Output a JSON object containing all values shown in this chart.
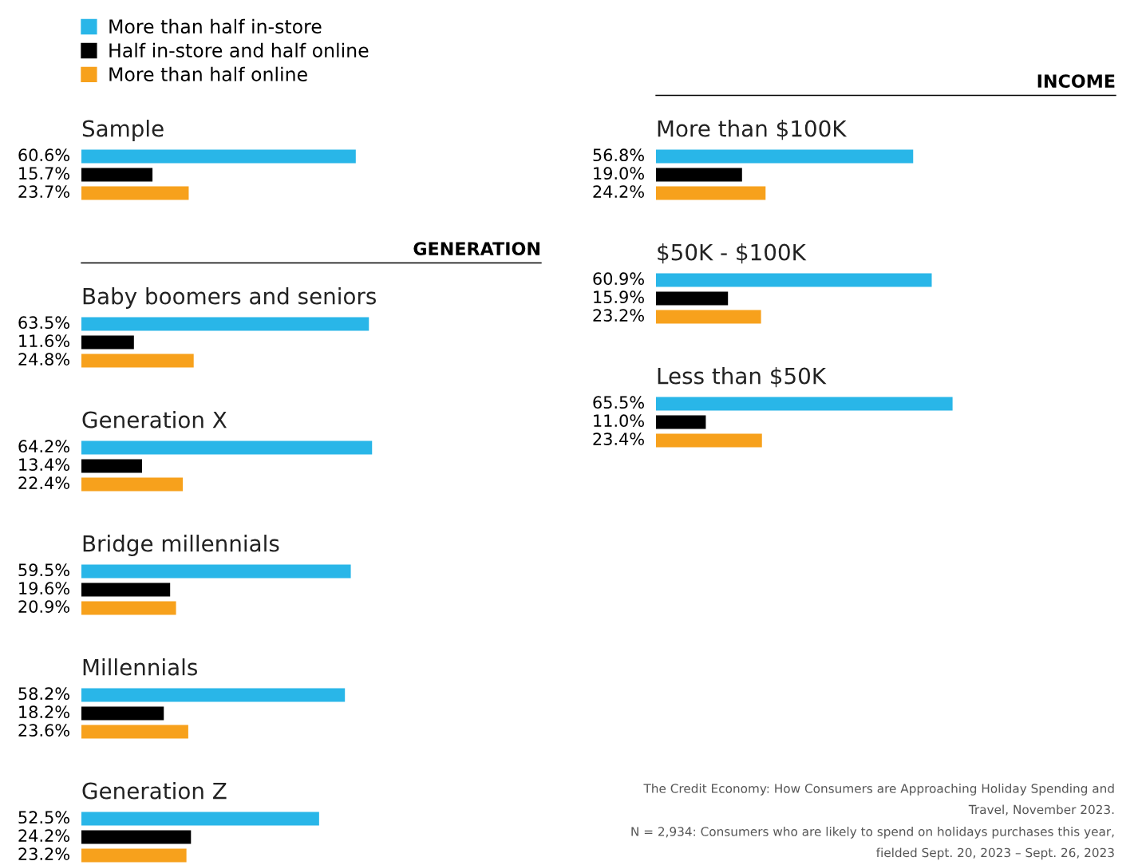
{
  "chart_data": [
    {
      "type": "bar",
      "orientation": "horizontal",
      "categories": [
        "Sample"
      ],
      "legend": "top left",
      "series": [
        {
          "name": "More than half in-store",
          "color": "#29b6e8",
          "values": [
            60.6
          ],
          "value_labels": [
            "60.6%"
          ]
        },
        {
          "name": "Half in-store and half online",
          "color": "#000000",
          "values": [
            15.7
          ],
          "value_labels": [
            "15.7%"
          ]
        },
        {
          "name": "More than half online",
          "color": "#f7a11c",
          "values": [
            23.7
          ],
          "value_labels": [
            "23.7%"
          ]
        }
      ]
    },
    {
      "type": "bar",
      "orientation": "horizontal",
      "annotations": [
        "GENERATION"
      ],
      "categories": [
        "Baby boomers and seniors",
        "Generation X",
        "Bridge millennials",
        "Millennials",
        "Generation Z"
      ],
      "series": [
        {
          "color": "#29b6e8",
          "values": [
            63.5,
            64.2,
            59.5,
            58.2,
            52.5
          ],
          "value_labels": [
            "63.5%",
            "64.2%",
            "59.5%",
            "58.2%",
            "52.5%"
          ]
        },
        {
          "color": "#000000",
          "values": [
            11.6,
            13.4,
            19.6,
            18.2,
            24.2
          ],
          "value_labels": [
            "11.6%",
            "13.4%",
            "19.6%",
            "18.2%",
            "24.2%"
          ]
        },
        {
          "color": "#f7a11c",
          "values": [
            24.8,
            22.4,
            20.9,
            23.6,
            23.2
          ],
          "value_labels": [
            "24.8%",
            "22.4%",
            "20.9%",
            "23.6%",
            "23.2%"
          ]
        }
      ]
    },
    {
      "type": "bar",
      "orientation": "horizontal",
      "annotations": [
        "INCOME"
      ],
      "categories": [
        "More than $100K",
        "$50K - $100K",
        "Less than $50K"
      ],
      "series": [
        {
          "color": "#29b6e8",
          "values": [
            56.8,
            60.9,
            65.5
          ],
          "value_labels": [
            "56.8%",
            "60.9%",
            "65.5%"
          ]
        },
        {
          "color": "#000000",
          "values": [
            19.0,
            15.9,
            11.0
          ],
          "value_labels": [
            "19.0%",
            "15.9%",
            "11.0%"
          ]
        },
        {
          "color": "#f7a11c",
          "values": [
            24.2,
            23.2,
            23.4
          ],
          "value_labels": [
            "24.2%",
            "23.2%",
            "23.4%"
          ]
        }
      ]
    },
    {
      "type": "other",
      "annotations": [
        "The Credit Economy: How Consumers are Approaching Holiday Spending and\nTravel, November 2023.",
        "N = 2,934: Consumers who are likely to spend on holidays purchases this year,\nfielded Sept. 20, 2023 – Sept. 26, 2023"
      ]
    }
  ]
}
